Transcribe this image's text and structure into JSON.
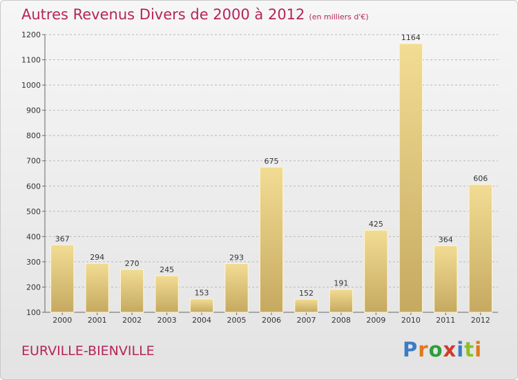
{
  "header": {
    "title": "Autres Revenus Divers de 2000 à 2012",
    "subtitle": "(en milliers d'€)"
  },
  "footer": {
    "town": "EURVILLE-BIENVILLE",
    "brand": "Proxiti",
    "brand_colors": [
      "#3a7cc6",
      "#e07a1a",
      "#2e9e3a",
      "#d23a2a",
      "#3a7cc6",
      "#8bbf2a",
      "#e07a1a"
    ]
  },
  "colors": {
    "title": "#b5245a",
    "bar_light": "#f2dc93",
    "bar_dark": "#c6a961",
    "grid": "#b8b8b8"
  },
  "chart_data": {
    "type": "bar",
    "categories": [
      "2000",
      "2001",
      "2002",
      "2003",
      "2004",
      "2005",
      "2006",
      "2007",
      "2008",
      "2009",
      "2010",
      "2011",
      "2012"
    ],
    "values": [
      367,
      294,
      270,
      245,
      153,
      293,
      675,
      152,
      191,
      425,
      1164,
      364,
      606
    ],
    "ylim": [
      100,
      1200
    ],
    "yticks": [
      100,
      200,
      300,
      400,
      500,
      600,
      700,
      800,
      900,
      1000,
      1100,
      1200
    ],
    "grid": "horizontal dashed",
    "legend": "none",
    "xlabel": "",
    "ylabel": ""
  }
}
